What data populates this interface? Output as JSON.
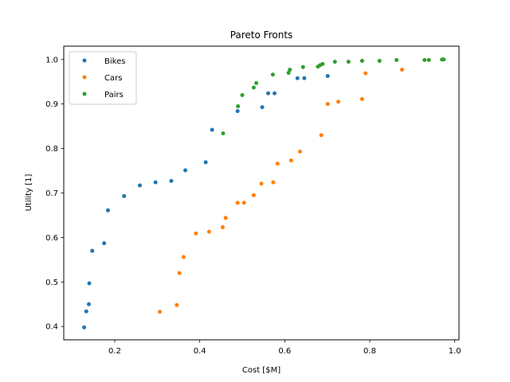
{
  "chart_data": {
    "type": "scatter",
    "title": "Pareto Fronts",
    "xlabel": "Cost [$M]",
    "ylabel": "Utility [1]",
    "xlim": [
      0.08,
      1.01
    ],
    "ylim": [
      0.37,
      1.03
    ],
    "xticks": [
      0.2,
      0.4,
      0.6,
      0.8,
      1.0
    ],
    "xtick_labels": [
      "0.2",
      "0.4",
      "0.6",
      "0.8",
      "1.0"
    ],
    "yticks": [
      0.4,
      0.5,
      0.6,
      0.7,
      0.8,
      0.9,
      1.0
    ],
    "ytick_labels": [
      "0.4",
      "0.5",
      "0.6",
      "0.7",
      "0.8",
      "0.9",
      "1.0"
    ],
    "grid": false,
    "legend_position": "top-left",
    "series": [
      {
        "name": "Bikes",
        "color": "#1f77b4",
        "points": [
          [
            0.128,
            0.398
          ],
          [
            0.133,
            0.434
          ],
          [
            0.139,
            0.45
          ],
          [
            0.14,
            0.497
          ],
          [
            0.147,
            0.57
          ],
          [
            0.175,
            0.587
          ],
          [
            0.184,
            0.661
          ],
          [
            0.222,
            0.693
          ],
          [
            0.259,
            0.717
          ],
          [
            0.296,
            0.724
          ],
          [
            0.333,
            0.727
          ],
          [
            0.366,
            0.751
          ],
          [
            0.414,
            0.769
          ],
          [
            0.429,
            0.842
          ],
          [
            0.489,
            0.884
          ],
          [
            0.547,
            0.893
          ],
          [
            0.561,
            0.924
          ],
          [
            0.576,
            0.924
          ],
          [
            0.63,
            0.958
          ],
          [
            0.646,
            0.958
          ],
          [
            0.701,
            0.963
          ]
        ]
      },
      {
        "name": "Cars",
        "color": "#ff7f0e",
        "points": [
          [
            0.306,
            0.433
          ],
          [
            0.346,
            0.448
          ],
          [
            0.352,
            0.52
          ],
          [
            0.362,
            0.556
          ],
          [
            0.391,
            0.609
          ],
          [
            0.422,
            0.613
          ],
          [
            0.454,
            0.623
          ],
          [
            0.461,
            0.644
          ],
          [
            0.489,
            0.678
          ],
          [
            0.504,
            0.678
          ],
          [
            0.527,
            0.695
          ],
          [
            0.545,
            0.721
          ],
          [
            0.573,
            0.724
          ],
          [
            0.583,
            0.766
          ],
          [
            0.615,
            0.773
          ],
          [
            0.636,
            0.793
          ],
          [
            0.686,
            0.83
          ],
          [
            0.701,
            0.9
          ],
          [
            0.726,
            0.905
          ],
          [
            0.782,
            0.911
          ],
          [
            0.79,
            0.969
          ],
          [
            0.876,
            0.977
          ]
        ]
      },
      {
        "name": "Pairs",
        "color": "#2ca02c",
        "points": [
          [
            0.455,
            0.834
          ],
          [
            0.49,
            0.895
          ],
          [
            0.5,
            0.92
          ],
          [
            0.527,
            0.937
          ],
          [
            0.533,
            0.947
          ],
          [
            0.572,
            0.966
          ],
          [
            0.609,
            0.97
          ],
          [
            0.612,
            0.977
          ],
          [
            0.643,
            0.983
          ],
          [
            0.678,
            0.984
          ],
          [
            0.683,
            0.987
          ],
          [
            0.689,
            0.99
          ],
          [
            0.718,
            0.995
          ],
          [
            0.75,
            0.995
          ],
          [
            0.782,
            0.997
          ],
          [
            0.823,
            0.997
          ],
          [
            0.863,
            0.999
          ],
          [
            0.929,
            0.999
          ],
          [
            0.939,
            0.999
          ],
          [
            0.97,
            1.0
          ],
          [
            0.974,
            1.0
          ]
        ]
      }
    ]
  }
}
